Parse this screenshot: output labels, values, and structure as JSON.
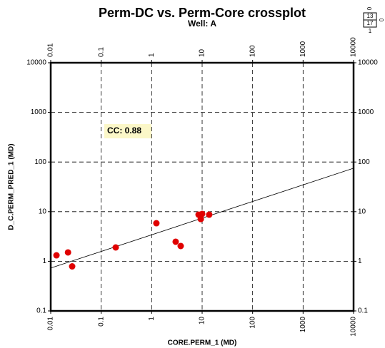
{
  "chart_data": {
    "type": "scatter",
    "title": "Perm-DC vs. Perm-Core crossplot",
    "subtitle": "Well: A",
    "x_label": "CORE.PERM_1 (MD)",
    "y_label": "D_C.PERM_PRED_1 (MD)",
    "x": [
      0.013,
      0.022,
      0.0266,
      0.194,
      1.24,
      2.99,
      3.76,
      8.5,
      9.4,
      10,
      13.8
    ],
    "values": [
      1.32,
      1.51,
      0.79,
      1.9,
      5.85,
      2.48,
      2.03,
      8.7,
      7.1,
      9.0,
      8.7
    ],
    "color": "#e00000",
    "fit_line": {
      "x": [
        0.01,
        10000
      ],
      "values": [
        0.73,
        75
      ]
    },
    "annotation": "CC: 0.88",
    "scale_box": [
      "0",
      "13",
      "17",
      "1",
      "0"
    ],
    "xlim": [
      0.01,
      10000
    ],
    "ylim": [
      0.1,
      10000
    ],
    "xticks": [
      0.01,
      0.1,
      1,
      10,
      100,
      1000,
      10000
    ],
    "yticks": [
      0.1,
      1,
      10,
      100,
      1000,
      10000
    ],
    "log_scale": true,
    "grid": true
  }
}
